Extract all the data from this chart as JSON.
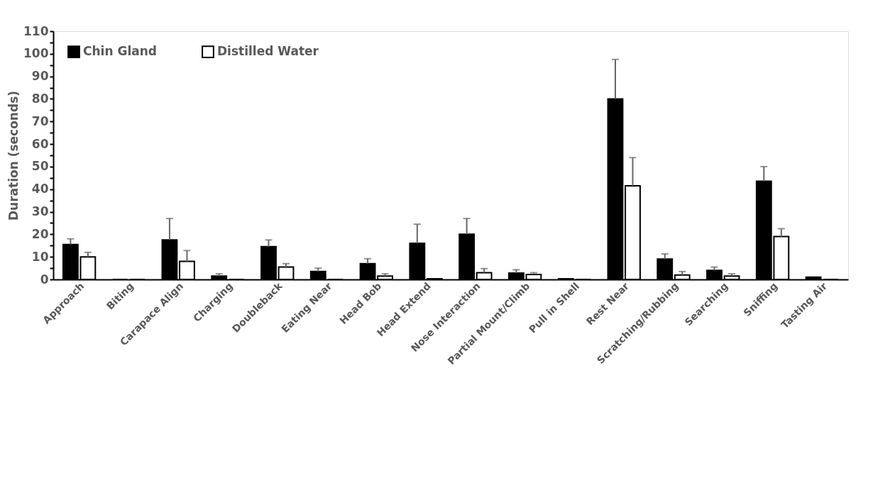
{
  "chart_data": {
    "type": "bar",
    "ylabel": "Duration (seconds)",
    "categories": [
      "Approach",
      "Biting",
      "Carapace Align",
      "Charging",
      "Doubleback",
      "Eating Near",
      "Head Bob",
      "Head Extend",
      "Nose Interaction",
      "Partial Mount/Climb",
      "Pull in Shell",
      "Rest Near",
      "Scratching/Rubbing",
      "Searching",
      "Sniffing",
      "Tasting Air"
    ],
    "series": [
      {
        "name": "Chin Gland",
        "color": "#000000",
        "values": [
          15.5,
          0,
          17.5,
          1.5,
          14.5,
          3.5,
          7,
          16,
          20,
          2.8,
          0.3,
          80,
          9,
          4,
          43.5,
          1
        ],
        "errors": [
          [
            15.5,
            18
          ],
          null,
          [
            17.5,
            27
          ],
          [
            1.5,
            2.5
          ],
          [
            14.5,
            17.5
          ],
          [
            3.5,
            5
          ],
          [
            7,
            9.2
          ],
          [
            16,
            24.5
          ],
          [
            20,
            27
          ],
          [
            2.8,
            4.3
          ],
          null,
          [
            80,
            97.5
          ],
          [
            9,
            11.3
          ],
          [
            4,
            5.5
          ],
          [
            43.5,
            50
          ],
          null
        ]
      },
      {
        "name": "Distilled Water",
        "color": "#ffffff",
        "values": [
          10,
          0,
          8,
          0,
          5.5,
          0,
          1.5,
          0.3,
          3,
          2.2,
          0,
          41.5,
          2,
          1.5,
          19,
          0
        ],
        "errors": [
          [
            10,
            12
          ],
          null,
          [
            8,
            12.8
          ],
          null,
          [
            5.5,
            7
          ],
          null,
          [
            1.5,
            2.5
          ],
          null,
          [
            3,
            4.8
          ],
          [
            2.2,
            3
          ],
          null,
          [
            41.5,
            54
          ],
          [
            2,
            3.5
          ],
          [
            1.5,
            2.5
          ],
          [
            19,
            22.5
          ],
          null
        ]
      }
    ],
    "ylim": [
      0,
      110
    ],
    "yticks": [
      0,
      {
        "value": 5,
        "label": null
      },
      10,
      {
        "value": 15,
        "label": null
      },
      20,
      {
        "value": 25,
        "label": null
      },
      30,
      {
        "value": 35,
        "label": null
      },
      40,
      {
        "value": 45,
        "label": null
      },
      50,
      {
        "value": 55,
        "label": null
      },
      60,
      {
        "value": 65,
        "label": null
      },
      70,
      {
        "value": 75,
        "label": null
      },
      80,
      {
        "value": 85,
        "label": null
      },
      90,
      {
        "value": 95,
        "label": null
      },
      100,
      {
        "value": 105,
        "label": null
      },
      110
    ],
    "grid": false,
    "legend": "top left"
  }
}
